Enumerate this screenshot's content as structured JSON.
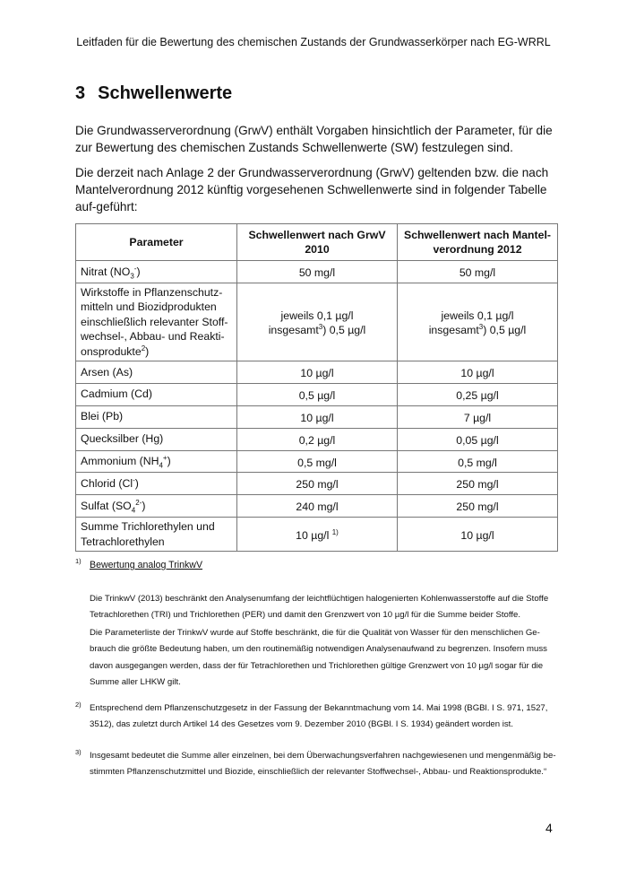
{
  "header": "Leitfaden für die Bewertung des chemischen Zustands der Grundwasserkörper nach EG-WRRL",
  "section": {
    "number": "3",
    "title": "Schwellenwerte"
  },
  "paragraphs": [
    "Die Grundwasserverordnung (GrwV) enthält Vorgaben hinsichtlich der Parameter, für die zur Bewertung des chemischen Zustands Schwellenwerte (SW) festzulegen sind.",
    "Die derzeit nach Anlage 2 der Grundwasserverordnung (GrwV) geltenden bzw. die nach Mantelverordnung 2012 künftig vorgesehenen Schwellenwerte sind in folgender Tabelle auf-geführt:"
  ],
  "table": {
    "headers": [
      "Parameter",
      "Schwellenwert nach GrwV 2010",
      "Schwellenwert nach Mantel-verordnung 2012"
    ],
    "rows": [
      {
        "param": [
          [
            "t",
            "Nitrat (NO"
          ],
          [
            "sub",
            "3"
          ],
          [
            "sup",
            "-"
          ],
          [
            "t",
            ")"
          ]
        ],
        "grwv": [
          [
            "t",
            "50 mg/l"
          ]
        ],
        "mantel": [
          [
            "t",
            "50 mg/l"
          ]
        ]
      },
      {
        "param": [
          [
            "t",
            "Wirkstoffe in Pflanzenschutz-mitteln und Biozidprodukten einschließlich relevanter Stoff-wechsel-, Abbau- und Reakti-onsprodukte"
          ],
          [
            "sup",
            "2"
          ],
          [
            "t",
            ")"
          ]
        ],
        "grwv": [
          [
            "t",
            "jeweils 0,1 µg/l"
          ],
          [
            "br",
            ""
          ],
          [
            "t",
            "insgesamt"
          ],
          [
            "sup",
            "3"
          ],
          [
            "t",
            ") 0,5 µg/l"
          ]
        ],
        "mantel": [
          [
            "t",
            "jeweils 0,1 µg/l"
          ],
          [
            "br",
            ""
          ],
          [
            "t",
            "insgesamt"
          ],
          [
            "sup",
            "3"
          ],
          [
            "t",
            ") 0,5 µg/l"
          ]
        ]
      },
      {
        "param": [
          [
            "t",
            "Arsen (As)"
          ]
        ],
        "grwv": [
          [
            "t",
            "10 µg/l"
          ]
        ],
        "mantel": [
          [
            "t",
            "10 µg/l"
          ]
        ]
      },
      {
        "param": [
          [
            "t",
            "Cadmium (Cd)"
          ]
        ],
        "grwv": [
          [
            "t",
            "0,5 µg/l"
          ]
        ],
        "mantel": [
          [
            "t",
            "0,25 µg/l"
          ]
        ]
      },
      {
        "param": [
          [
            "t",
            "Blei (Pb)"
          ]
        ],
        "grwv": [
          [
            "t",
            "10 µg/l"
          ]
        ],
        "mantel": [
          [
            "t",
            "7 µg/l"
          ]
        ]
      },
      {
        "param": [
          [
            "t",
            "Quecksilber (Hg)"
          ]
        ],
        "grwv": [
          [
            "t",
            "0,2 µg/l"
          ]
        ],
        "mantel": [
          [
            "t",
            "0,05 µg/l"
          ]
        ]
      },
      {
        "param": [
          [
            "t",
            "Ammonium (NH"
          ],
          [
            "sub",
            "4"
          ],
          [
            "sup",
            "+"
          ],
          [
            "t",
            ")"
          ]
        ],
        "grwv": [
          [
            "t",
            "0,5 mg/l"
          ]
        ],
        "mantel": [
          [
            "t",
            "0,5 mg/l"
          ]
        ]
      },
      {
        "param": [
          [
            "t",
            "Chlorid (Cl"
          ],
          [
            "sup",
            "-"
          ],
          [
            "t",
            ")"
          ]
        ],
        "grwv": [
          [
            "t",
            "250 mg/l"
          ]
        ],
        "mantel": [
          [
            "t",
            "250 mg/l"
          ]
        ]
      },
      {
        "param": [
          [
            "t",
            "Sulfat (SO"
          ],
          [
            "sub",
            "4"
          ],
          [
            "sup",
            "2-"
          ],
          [
            "t",
            ")"
          ]
        ],
        "grwv": [
          [
            "t",
            "240 mg/l"
          ]
        ],
        "mantel": [
          [
            "t",
            "250 mg/l"
          ]
        ]
      },
      {
        "param": [
          [
            "t",
            "Summe Trichlorethylen und Tetrachlorethylen"
          ]
        ],
        "grwv": [
          [
            "t",
            "10 µg/l "
          ],
          [
            "sup",
            "1)"
          ]
        ],
        "mantel": [
          [
            "t",
            "10 µg/l"
          ]
        ]
      }
    ]
  },
  "footnotes": {
    "f1": {
      "mark": "1)",
      "title": "Bewertung analog TrinkwV",
      "p1": "Die TrinkwV (2013) beschränkt den Analysenumfang der leichtflüchtigen halogenierten Kohlenwasserstoffe auf die Stoffe Tetrachlorethen (TRI) und Trichlorethen (PER) und damit den Grenzwert von 10 µg/l für die Summe beider Stoffe.",
      "p2": "Die Parameterliste der TrinkwV wurde auf Stoffe beschränkt, die für die Qualität von Wasser für den menschlichen Ge-brauch die größte Bedeutung haben, um den routinemäßig notwendigen Analysenaufwand zu begrenzen. Insofern muss davon ausgegangen werden, dass der für Tetrachlorethen und Trichlorethen gültige Grenzwert von 10 µg/l sogar für die Summe aller LHKW gilt."
    },
    "f2": {
      "mark": "2)",
      "text": "Entsprechend dem Pflanzenschutzgesetz in der Fassung der Bekanntmachung vom 14. Mai 1998 (BGBl. I S. 971, 1527, 3512), das zuletzt durch Artikel 14 des Gesetzes vom 9. Dezember 2010 (BGBl. I S. 1934) geändert worden ist."
    },
    "f3": {
      "mark": "3)",
      "text": "Insgesamt bedeutet die Summe aller einzelnen, bei dem Überwachungsverfahren nachgewiesenen und mengenmäßig be-stimmten Pflanzenschutzmittel und Biozide, einschließlich der relevanter Stoffwechsel-, Abbau- und Reaktionsprodukte.“"
    }
  },
  "page_number": "4"
}
